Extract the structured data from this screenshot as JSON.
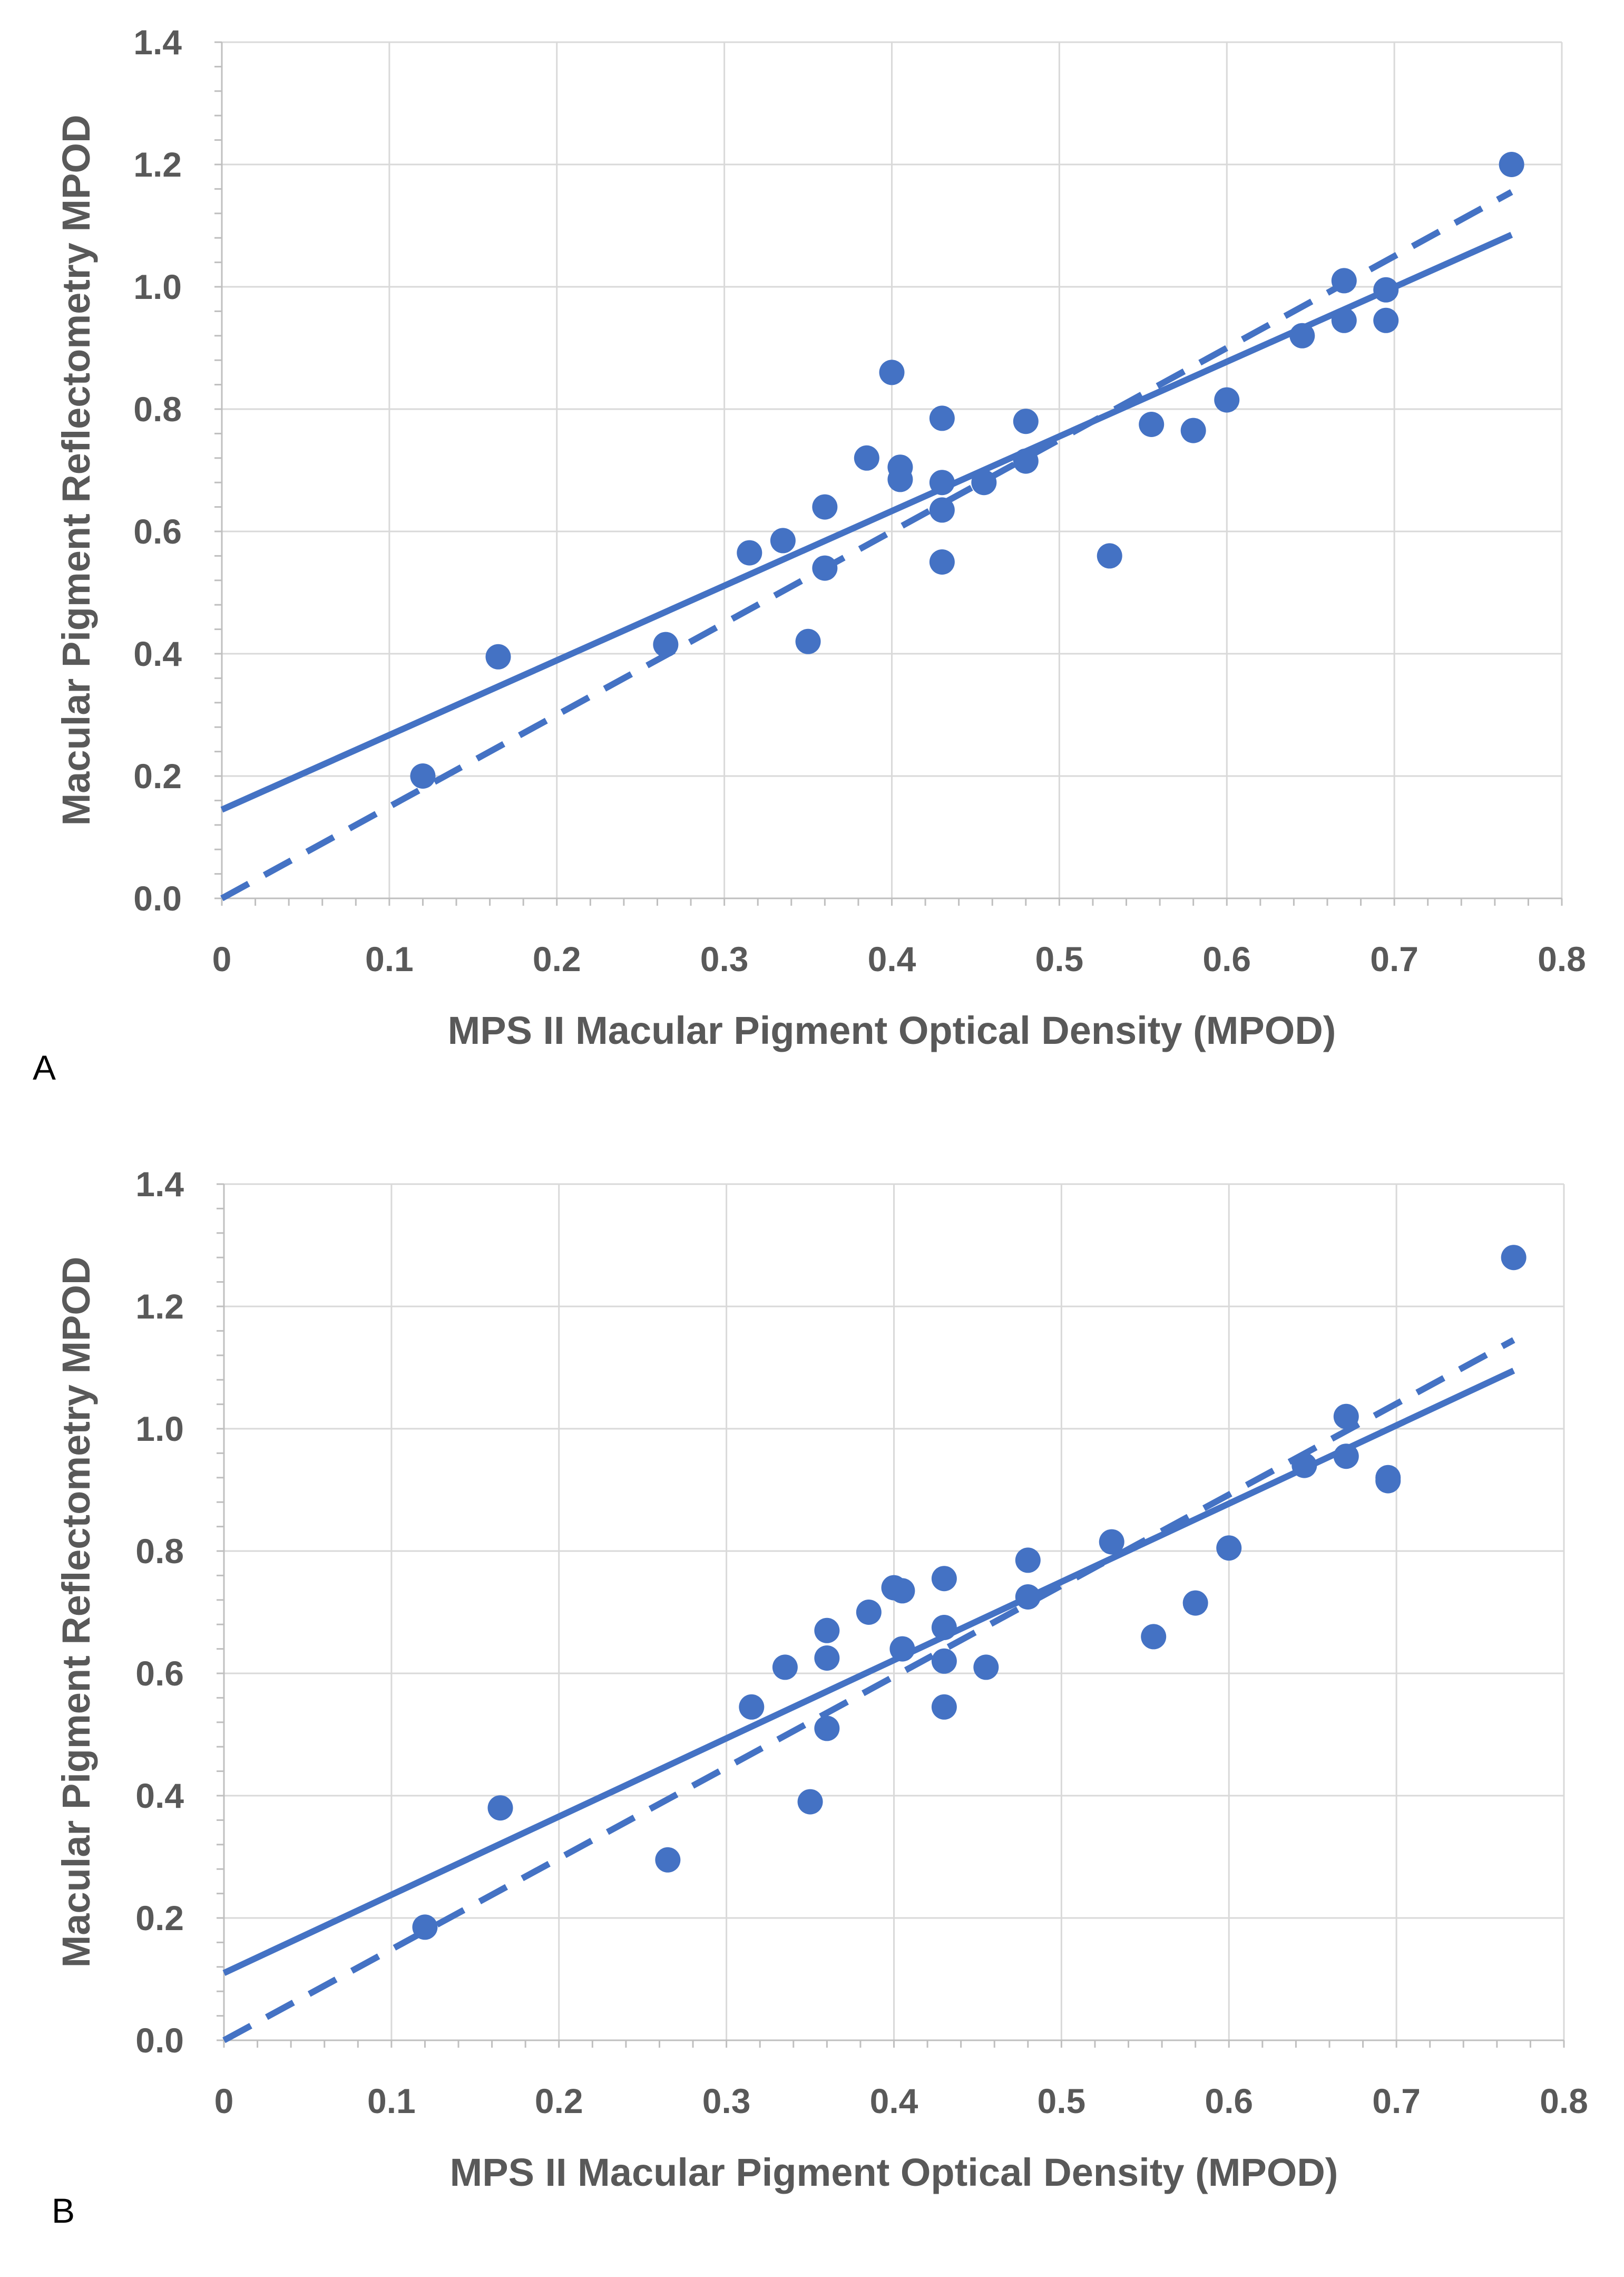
{
  "colors": {
    "series": "#4472C4",
    "grid": "#D9D9D9",
    "axis_text": "#595959",
    "axis_line": "#BFBFBF"
  },
  "chart_data": [
    {
      "panel_label": "A",
      "type": "scatter",
      "xlabel": "MPS II Macular Pigment Optical Density (MPOD)",
      "ylabel": "Macular Pigment Reflectometry MPOD",
      "xlim": [
        0,
        0.8
      ],
      "ylim": [
        0,
        1.4
      ],
      "x_ticks": [
        "0",
        "0.1",
        "0.2",
        "0.3",
        "0.4",
        "0.5",
        "0.6",
        "0.7",
        "0.8"
      ],
      "y_ticks": [
        "0.0",
        "0.2",
        "0.4",
        "0.6",
        "0.8",
        "1.0",
        "1.2",
        "1.4"
      ],
      "grid": true,
      "series": [
        {
          "name": "Data points",
          "type": "scatter",
          "points": [
            [
              0.12,
              0.2
            ],
            [
              0.165,
              0.395
            ],
            [
              0.265,
              0.415
            ],
            [
              0.315,
              0.565
            ],
            [
              0.335,
              0.585
            ],
            [
              0.35,
              0.42
            ],
            [
              0.36,
              0.64
            ],
            [
              0.36,
              0.54
            ],
            [
              0.385,
              0.72
            ],
            [
              0.4,
              0.86
            ],
            [
              0.405,
              0.705
            ],
            [
              0.405,
              0.685
            ],
            [
              0.43,
              0.785
            ],
            [
              0.43,
              0.68
            ],
            [
              0.43,
              0.635
            ],
            [
              0.43,
              0.55
            ],
            [
              0.455,
              0.68
            ],
            [
              0.48,
              0.78
            ],
            [
              0.48,
              0.715
            ],
            [
              0.53,
              0.56
            ],
            [
              0.555,
              0.775
            ],
            [
              0.58,
              0.765
            ],
            [
              0.6,
              0.815
            ],
            [
              0.645,
              0.92
            ],
            [
              0.67,
              1.01
            ],
            [
              0.67,
              0.945
            ],
            [
              0.695,
              0.995
            ],
            [
              0.695,
              0.945
            ],
            [
              0.77,
              1.2
            ]
          ]
        },
        {
          "name": "Regression fit",
          "type": "line",
          "style": "solid",
          "x": [
            0,
            0.77
          ],
          "y": [
            0.145,
            1.085
          ]
        },
        {
          "name": "Line of identity",
          "type": "line",
          "style": "dashed",
          "x": [
            0,
            0.77
          ],
          "y": [
            0,
            1.155
          ]
        }
      ]
    },
    {
      "panel_label": "B",
      "type": "scatter",
      "xlabel": "MPS II Macular Pigment Optical Density (MPOD)",
      "ylabel": "Macular Pigment Reflectometry MPOD",
      "xlim": [
        0,
        0.8
      ],
      "ylim": [
        0,
        1.4
      ],
      "x_ticks": [
        "0",
        "0.1",
        "0.2",
        "0.3",
        "0.4",
        "0.5",
        "0.6",
        "0.7",
        "0.8"
      ],
      "y_ticks": [
        "0.0",
        "0.2",
        "0.4",
        "0.6",
        "0.8",
        "1.0",
        "1.2",
        "1.4"
      ],
      "grid": true,
      "series": [
        {
          "name": "Data points",
          "type": "scatter",
          "points": [
            [
              0.12,
              0.185
            ],
            [
              0.165,
              0.38
            ],
            [
              0.265,
              0.295
            ],
            [
              0.315,
              0.545
            ],
            [
              0.335,
              0.61
            ],
            [
              0.35,
              0.39
            ],
            [
              0.36,
              0.67
            ],
            [
              0.36,
              0.625
            ],
            [
              0.36,
              0.51
            ],
            [
              0.385,
              0.7
            ],
            [
              0.4,
              0.74
            ],
            [
              0.405,
              0.735
            ],
            [
              0.405,
              0.64
            ],
            [
              0.43,
              0.755
            ],
            [
              0.43,
              0.675
            ],
            [
              0.43,
              0.62
            ],
            [
              0.43,
              0.545
            ],
            [
              0.455,
              0.61
            ],
            [
              0.48,
              0.785
            ],
            [
              0.48,
              0.725
            ],
            [
              0.53,
              0.815
            ],
            [
              0.555,
              0.66
            ],
            [
              0.58,
              0.715
            ],
            [
              0.6,
              0.805
            ],
            [
              0.645,
              0.94
            ],
            [
              0.67,
              1.02
            ],
            [
              0.67,
              0.955
            ],
            [
              0.695,
              0.92
            ],
            [
              0.695,
              0.915
            ],
            [
              0.77,
              1.28
            ]
          ]
        },
        {
          "name": "Regression fit",
          "type": "line",
          "style": "solid",
          "x": [
            0,
            0.77
          ],
          "y": [
            0.11,
            1.095
          ]
        },
        {
          "name": "Line of identity",
          "type": "line",
          "style": "dashed",
          "x": [
            0,
            0.77
          ],
          "y": [
            0,
            1.145
          ]
        }
      ]
    }
  ]
}
